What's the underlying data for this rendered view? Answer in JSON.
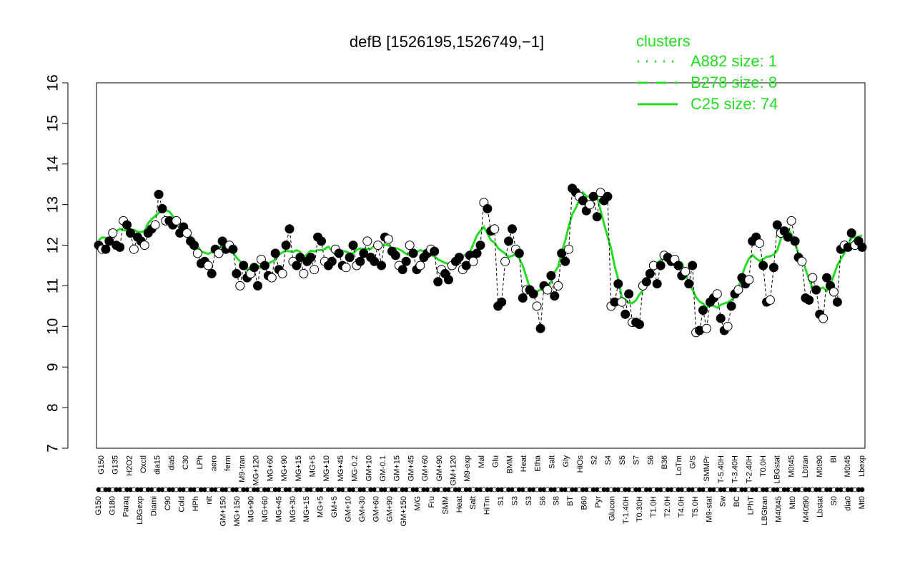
{
  "chart_data": {
    "type": "line",
    "title": "defB [1526195,1526749,−1]",
    "ylim": [
      7,
      16
    ],
    "yticks": [
      7,
      8,
      9,
      10,
      11,
      12,
      13,
      14,
      15,
      16
    ],
    "legend": {
      "title": "clusters",
      "placement": "top-right",
      "entries": [
        {
          "label": "A882 size: 1",
          "style": "dotted"
        },
        {
          "label": "B278 size: 8",
          "style": "dashed"
        },
        {
          "label": "C25 size: 74",
          "style": "solid"
        }
      ]
    },
    "xlabels_top": [
      "G150",
      "G135",
      "H2O2",
      "Oxctl",
      "dia15",
      "dia5",
      "C30",
      "LPh",
      "aero",
      "ferm",
      "M9-tran",
      "MG+120",
      "MG+60",
      "MG+90",
      "MG+15",
      "MG+5",
      "MG+10",
      "MG+45",
      "MG-0.2",
      "GM+10",
      "GM-0.1",
      "GM+15",
      "GM+45",
      "GM+60",
      "GM+90",
      "GM+120",
      "M9-exp",
      "Mal",
      "Glu",
      "BMM",
      "Heat",
      "Etha",
      "Salt",
      "Gly",
      "HiOs",
      "S2",
      "S4",
      "S5",
      "S7",
      "S6",
      "B36",
      "LoTm",
      "G/S",
      "SMMPr",
      "T-5.40H",
      "T-3.40H",
      "T-2.40H",
      "T0.0H",
      "LBGstat",
      "M0t45",
      "Lbtran",
      "M0t90",
      "BI",
      "M0t45",
      "Lbexp"
    ],
    "xlabels_bottom": [
      "G150",
      "G180",
      "Paraq",
      "LBGexp",
      "Diami",
      "C90",
      "Cold",
      "HPh",
      "nit",
      "GM+150",
      "MG+150",
      "MG+90",
      "MG+60",
      "MG+45",
      "MG+30",
      "MG+15",
      "MG+5",
      "GM+5",
      "GM+10",
      "GM+30",
      "GM+60",
      "GM+90",
      "GM+150",
      "M/G",
      "Fru",
      "SMM",
      "Heat",
      "Salt",
      "HiTm",
      "S1",
      "S3",
      "S3",
      "S6",
      "S8",
      "BT",
      "B60",
      "Pyr",
      "Glucon",
      "T-1.40H",
      "T0.30H",
      "T1.0H",
      "T2.0H",
      "T4.0H",
      "T5.0H",
      "M9-stat",
      "Sw",
      "BC",
      "LPhT",
      "LBGtran",
      "M40t45",
      "Mt0",
      "M40t90",
      "Lbstat",
      "S0",
      "dia0",
      "Mt0"
    ],
    "series": [
      {
        "name": "",
        "y": [
          12.0,
          11.9,
          11.9,
          12.1,
          12.3,
          12.0,
          11.95,
          12.6,
          12.5,
          12.3,
          11.9,
          12.2,
          12.1,
          12.0,
          12.3,
          12.4,
          12.5,
          13.25,
          12.9,
          12.6,
          12.6,
          12.5,
          12.6,
          12.3,
          12.45,
          12.3,
          12.1,
          12.0,
          11.8,
          11.55,
          11.6,
          11.5,
          11.3,
          11.9,
          11.8,
          12.1,
          11.9,
          12.0,
          11.9,
          11.3,
          11.0,
          11.5,
          11.2,
          11.3,
          11.45,
          11.0,
          11.65,
          11.5,
          11.25,
          11.2,
          11.8,
          11.4,
          11.3,
          12.0,
          12.4,
          11.6,
          11.5,
          11.7,
          11.3,
          11.6,
          11.7,
          11.4,
          12.2,
          12.1,
          11.6,
          11.5,
          11.6,
          11.9,
          11.8,
          11.5,
          11.45,
          11.7,
          12.0,
          11.5,
          11.6,
          11.8,
          12.1,
          11.7,
          11.6,
          12.0,
          11.5,
          12.2,
          12.15,
          11.85,
          11.75,
          11.5,
          11.4,
          11.6,
          12.0,
          11.8,
          11.4,
          11.5,
          11.7,
          11.8,
          11.9,
          11.85,
          11.1,
          11.4,
          11.3,
          11.15,
          11.5,
          11.6,
          11.7,
          11.4,
          11.5,
          11.75,
          11.6,
          11.8,
          12.0,
          13.05,
          12.9,
          12.35,
          12.4,
          10.5,
          10.6,
          11.6,
          12.1,
          12.4,
          11.9,
          11.8,
          10.7,
          10.9,
          10.9,
          10.8,
          10.5,
          9.95,
          11.0,
          10.9,
          11.25,
          10.75,
          11.0,
          11.8,
          11.6,
          11.9,
          13.4,
          13.3,
          13.2,
          13.1,
          12.85,
          13.0,
          13.2,
          12.7,
          13.3,
          13.1,
          13.2,
          10.5,
          10.6,
          11.05,
          10.6,
          10.3,
          10.8,
          10.1,
          10.1,
          10.05,
          11.0,
          11.1,
          11.3,
          11.5,
          11.05,
          11.5,
          11.75,
          11.7,
          11.6,
          11.65,
          11.5,
          11.25,
          11.35,
          11.05,
          11.5,
          9.85,
          9.9,
          10.4,
          9.95,
          10.6,
          10.7,
          10.8,
          10.2,
          9.9,
          10.0,
          10.5,
          10.8,
          10.9,
          11.2,
          11.05,
          11.15,
          12.1,
          12.2,
          12.05,
          11.5,
          10.6,
          10.65,
          11.45,
          12.5,
          12.3,
          12.35,
          12.2,
          12.6,
          12.1,
          11.7,
          11.6,
          10.7,
          10.65,
          11.2,
          10.9,
          10.3,
          10.2,
          11.2,
          11.0,
          10.85,
          10.6,
          11.9,
          12.0,
          11.95,
          12.3,
          12.0,
          12.1,
          11.95
        ]
      }
    ]
  }
}
